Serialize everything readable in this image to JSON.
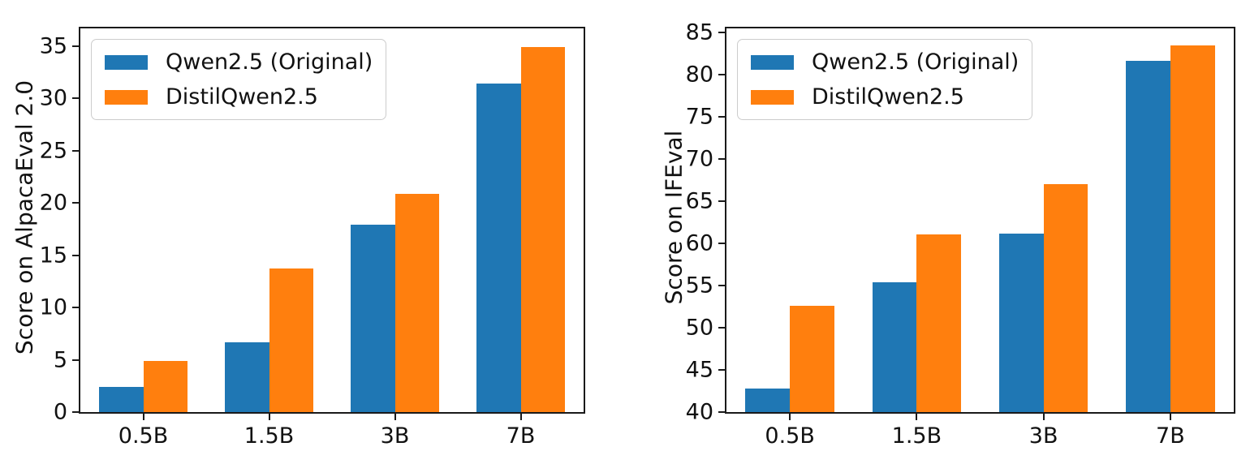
{
  "figure": {
    "background": "#ffffff",
    "text_color": "#111111",
    "spine_color": "#1a1a1a"
  },
  "chart_data": [
    {
      "type": "bar",
      "id": "alpacaeval",
      "title": "",
      "xlabel": "",
      "ylabel": "Score on AlpacaEval 2.0",
      "categories": [
        "0.5B",
        "1.5B",
        "3B",
        "7B"
      ],
      "series": [
        {
          "name": "Qwen2.5 (Original)",
          "color": "#1f77b4",
          "values": [
            2.4,
            6.7,
            17.9,
            31.4
          ]
        },
        {
          "name": "DistilQwen2.5",
          "color": "#ff7f0e",
          "values": [
            4.9,
            13.7,
            20.9,
            34.9
          ]
        }
      ],
      "ylim": [
        0,
        36.7
      ],
      "yticks": [
        0,
        5,
        10,
        15,
        20,
        25,
        30,
        35
      ],
      "grid": false,
      "legend_position": "upper-left",
      "bar_width_fraction": 0.35
    },
    {
      "type": "bar",
      "id": "ifeval",
      "title": "",
      "xlabel": "",
      "ylabel": "Score on IFEval",
      "categories": [
        "0.5B",
        "1.5B",
        "3B",
        "7B"
      ],
      "series": [
        {
          "name": "Qwen2.5 (Original)",
          "color": "#1f77b4",
          "values": [
            42.8,
            55.4,
            61.2,
            81.7
          ]
        },
        {
          "name": "DistilQwen2.5",
          "color": "#ff7f0e",
          "values": [
            52.6,
            61.1,
            67.0,
            83.5
          ]
        }
      ],
      "ylim": [
        40,
        85.5
      ],
      "yticks": [
        40,
        45,
        50,
        55,
        60,
        65,
        70,
        75,
        80,
        85
      ],
      "grid": false,
      "legend_position": "upper-left",
      "bar_width_fraction": 0.35
    }
  ]
}
